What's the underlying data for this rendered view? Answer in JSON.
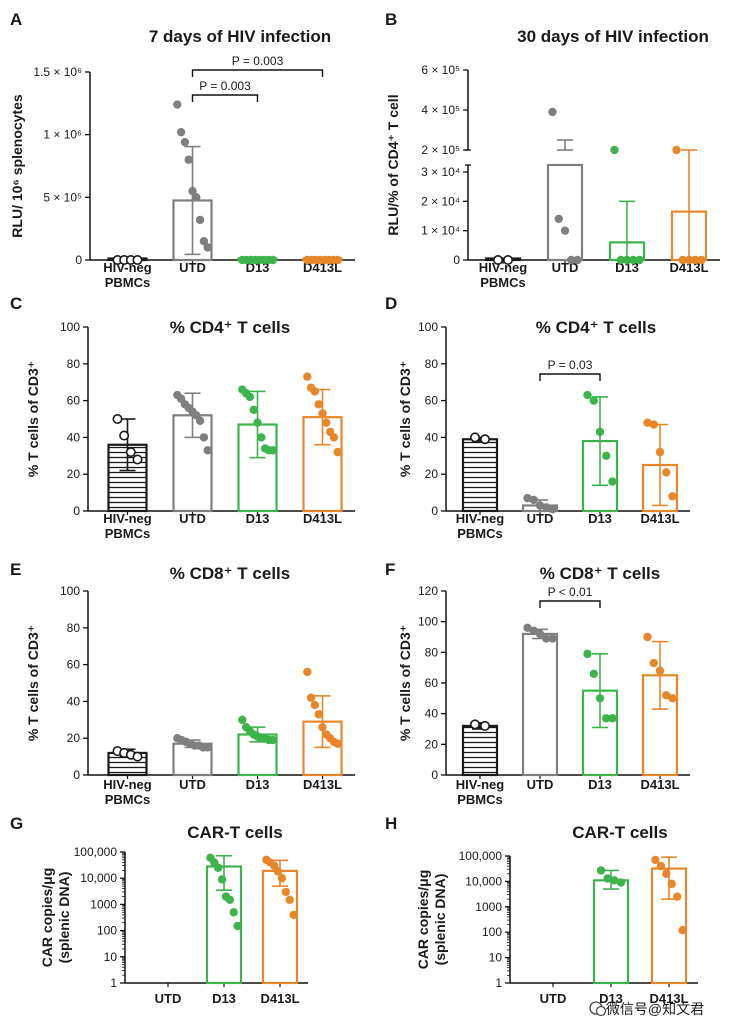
{
  "colors": {
    "neg": "#1a1a1a",
    "utd": "#7f7f7f",
    "d13": "#3cb44b",
    "d413l": "#e8872a"
  },
  "watermark": "微信号@知文君",
  "chart_data": [
    {
      "id": "A",
      "type": "bar",
      "title": "7 days of HIV infection",
      "ylabel": "RLU/ 10⁶ splenocytes",
      "scale": "linear",
      "ylim": [
        0,
        1500000
      ],
      "yticks": [
        0,
        500000,
        1000000,
        1500000
      ],
      "ytick_labels": [
        "0",
        "5 × 10⁵",
        "1 × 10⁶",
        "1.5 × 10⁶"
      ],
      "categories": [
        "HIV-neg\nPBMCs",
        "UTD",
        "D13",
        "D413L"
      ],
      "series": [
        {
          "name": "HIV-neg PBMCs",
          "color_key": "neg",
          "mean": 0,
          "sd": 0,
          "hatched": true,
          "marker": "open",
          "points": [
            0,
            0,
            0,
            0
          ]
        },
        {
          "name": "UTD",
          "color_key": "utd",
          "mean": 475000,
          "sd": 430000,
          "points": [
            1240000,
            1020000,
            940000,
            800000,
            550000,
            500000,
            320000,
            150000,
            100000
          ]
        },
        {
          "name": "D13",
          "color_key": "d13",
          "mean": 5000,
          "sd": 3000,
          "points": [
            0,
            0,
            0,
            0,
            0,
            0,
            0,
            0
          ]
        },
        {
          "name": "D413L",
          "color_key": "d413l",
          "mean": 5000,
          "sd": 3000,
          "points": [
            0,
            0,
            0,
            0,
            0,
            0,
            0,
            0
          ]
        }
      ],
      "brackets": [
        {
          "from": 1,
          "to": 3,
          "label": "P = 0.003"
        },
        {
          "from": 1,
          "to": 2,
          "label": "P = 0.003"
        }
      ]
    },
    {
      "id": "B",
      "type": "bar",
      "title": "30 days of HIV infection",
      "ylabel": "RLU/% of CD4⁺ T cell",
      "scale": "broken",
      "lower_range": [
        0,
        30000
      ],
      "upper_range": [
        200000,
        600000
      ],
      "yticks_lower": [
        0,
        10000,
        20000,
        30000
      ],
      "ytick_labels_lower": [
        "0",
        "1 × 10⁴",
        "2 × 10⁴",
        "3 × 10⁴"
      ],
      "yticks_upper": [
        200000,
        400000,
        600000
      ],
      "ytick_labels_upper": [
        "2 × 10⁵",
        "4 × 10⁵",
        "6 × 10⁵"
      ],
      "categories": [
        "HIV-neg\nPBMCs",
        "UTD",
        "D13",
        "D413L"
      ],
      "series": [
        {
          "name": "HIV-neg PBMCs",
          "color_key": "neg",
          "mean": 0,
          "sd": 0,
          "hatched": true,
          "marker": "open",
          "points": [
            0,
            0
          ]
        },
        {
          "name": "UTD",
          "color_key": "utd",
          "mean": 150000,
          "sd": 100000,
          "points": [
            390000,
            14000,
            10000,
            0,
            0
          ]
        },
        {
          "name": "D13",
          "color_key": "d13",
          "mean": 6000,
          "sd": 14000,
          "points": [
            34000,
            0,
            0,
            0,
            0
          ]
        },
        {
          "name": "D413L",
          "color_key": "d413l",
          "mean": 16500,
          "sd": 16000,
          "points": [
            38000,
            0,
            0,
            0,
            0
          ]
        }
      ]
    },
    {
      "id": "C",
      "type": "bar",
      "title": "% CD4⁺ T cells",
      "ylabel": "% T cells of CD3⁺",
      "scale": "linear",
      "ylim": [
        0,
        100
      ],
      "yticks": [
        0,
        20,
        40,
        60,
        80,
        100
      ],
      "categories": [
        "HIV-neg\nPBMCs",
        "UTD",
        "D13",
        "D413L"
      ],
      "series": [
        {
          "name": "HIV-neg PBMCs",
          "color_key": "neg",
          "mean": 36,
          "sd": 14,
          "hatched": true,
          "marker": "open",
          "points": [
            50,
            41,
            32,
            28
          ]
        },
        {
          "name": "UTD",
          "color_key": "utd",
          "mean": 52,
          "sd": 12,
          "points": [
            63,
            61,
            58,
            56,
            54,
            52,
            49,
            40,
            33
          ]
        },
        {
          "name": "D13",
          "color_key": "d13",
          "mean": 47,
          "sd": 18,
          "points": [
            66,
            64,
            62,
            55,
            48,
            40,
            34,
            33,
            33
          ]
        },
        {
          "name": "D413L",
          "color_key": "d413l",
          "mean": 51,
          "sd": 15,
          "points": [
            73,
            67,
            65,
            58,
            53,
            48,
            43,
            40,
            32
          ]
        }
      ]
    },
    {
      "id": "D",
      "type": "bar",
      "title": "% CD4⁺ T cells",
      "ylabel": "% T cells of CD3⁺",
      "scale": "linear",
      "ylim": [
        0,
        100
      ],
      "yticks": [
        0,
        20,
        40,
        60,
        80,
        100
      ],
      "categories": [
        "HIV-neg\nPBMCs",
        "UTD",
        "D13",
        "D413L"
      ],
      "series": [
        {
          "name": "HIV-neg PBMCs",
          "color_key": "neg",
          "mean": 39,
          "sd": 1,
          "hatched": true,
          "marker": "open",
          "points": [
            40,
            39
          ]
        },
        {
          "name": "UTD",
          "color_key": "utd",
          "mean": 3,
          "sd": 3,
          "points": [
            7,
            6,
            3,
            2,
            1
          ]
        },
        {
          "name": "D13",
          "color_key": "d13",
          "mean": 38,
          "sd": 24,
          "points": [
            63,
            60,
            43,
            30,
            16
          ]
        },
        {
          "name": "D413L",
          "color_key": "d413l",
          "mean": 25,
          "sd": 22,
          "points": [
            48,
            47,
            32,
            21,
            8
          ]
        }
      ],
      "brackets": [
        {
          "from": 1,
          "to": 2,
          "label": "P = 0.03"
        }
      ]
    },
    {
      "id": "E",
      "type": "bar",
      "title": "% CD8⁺ T cells",
      "ylabel": "% T cells of CD3⁺",
      "scale": "linear",
      "ylim": [
        0,
        100
      ],
      "yticks": [
        0,
        20,
        40,
        60,
        80,
        100
      ],
      "categories": [
        "HIV-neg\nPBMCs",
        "UTD",
        "D13",
        "D413L"
      ],
      "series": [
        {
          "name": "HIV-neg PBMCs",
          "color_key": "neg",
          "mean": 12,
          "sd": 2,
          "hatched": true,
          "marker": "open",
          "points": [
            13,
            12,
            11,
            10
          ]
        },
        {
          "name": "UTD",
          "color_key": "utd",
          "mean": 17,
          "sd": 2,
          "points": [
            20,
            19,
            18,
            17,
            16,
            16,
            15,
            15
          ]
        },
        {
          "name": "D13",
          "color_key": "d13",
          "mean": 22,
          "sd": 4,
          "points": [
            30,
            26,
            24,
            22,
            21,
            20,
            20,
            19,
            19
          ]
        },
        {
          "name": "D413L",
          "color_key": "d413l",
          "mean": 29,
          "sd": 14,
          "points": [
            56,
            42,
            38,
            33,
            26,
            22,
            20,
            18,
            17
          ]
        }
      ]
    },
    {
      "id": "F",
      "type": "bar",
      "title": "% CD8⁺ T cells",
      "ylabel": "% T cells of CD3⁺",
      "scale": "linear",
      "ylim": [
        0,
        120
      ],
      "yticks": [
        0,
        20,
        40,
        60,
        80,
        100,
        120
      ],
      "categories": [
        "HIV-neg\nPBMCs",
        "UTD",
        "D13",
        "D413L"
      ],
      "series": [
        {
          "name": "HIV-neg PBMCs",
          "color_key": "neg",
          "mean": 32,
          "sd": 2,
          "hatched": true,
          "marker": "open",
          "points": [
            33,
            32
          ]
        },
        {
          "name": "UTD",
          "color_key": "utd",
          "mean": 92,
          "sd": 3,
          "points": [
            96,
            94,
            92,
            89,
            89
          ]
        },
        {
          "name": "D13",
          "color_key": "d13",
          "mean": 55,
          "sd": 24,
          "points": [
            79,
            66,
            50,
            37,
            37
          ]
        },
        {
          "name": "D413L",
          "color_key": "d413l",
          "mean": 65,
          "sd": 22,
          "points": [
            90,
            73,
            68,
            52,
            50
          ]
        }
      ],
      "brackets": [
        {
          "from": 1,
          "to": 2,
          "label": "P < 0.01"
        }
      ]
    },
    {
      "id": "G",
      "type": "bar",
      "title": "CAR-T cells",
      "ylabel": "CAR copies/μg (splenic DNA)",
      "scale": "log",
      "ylim": [
        1,
        100000
      ],
      "yticks": [
        1,
        10,
        100,
        1000,
        10000,
        100000
      ],
      "ytick_labels": [
        "1",
        "10",
        "100",
        "1000",
        "10,000",
        "100,000"
      ],
      "categories": [
        "UTD",
        "D13",
        "D413L"
      ],
      "series": [
        {
          "name": "UTD",
          "color_key": "utd",
          "mean": null,
          "points": []
        },
        {
          "name": "D13",
          "color_key": "d13",
          "mean": 28000,
          "sd_upper": 72000,
          "sd_lower": 3500,
          "points": [
            60000,
            40000,
            25000,
            9000,
            2000,
            1500,
            500,
            150
          ]
        },
        {
          "name": "D413L",
          "color_key": "d413l",
          "mean": 19000,
          "sd_upper": 48000,
          "sd_lower": 5000,
          "points": [
            50000,
            40000,
            30000,
            18000,
            10000,
            3000,
            1500,
            400
          ]
        }
      ]
    },
    {
      "id": "H",
      "type": "bar",
      "title": "CAR-T cells",
      "ylabel": "CAR copies/μg (splenic DNA)",
      "scale": "log",
      "ylim": [
        1,
        100000
      ],
      "yticks": [
        1,
        10,
        100,
        1000,
        10000,
        100000
      ],
      "ytick_labels": [
        "1",
        "10",
        "100",
        "1000",
        "10,000",
        "100,000"
      ],
      "categories": [
        "UTD",
        "D13",
        "D413L"
      ],
      "series": [
        {
          "name": "UTD",
          "color_key": "utd",
          "mean": null,
          "points": []
        },
        {
          "name": "D13",
          "color_key": "d13",
          "mean": 11000,
          "sd_upper": 27000,
          "sd_lower": 5000,
          "points": [
            27000,
            13000,
            11000,
            9000
          ]
        },
        {
          "name": "D413L",
          "color_key": "d413l",
          "mean": 32000,
          "sd_upper": 90000,
          "sd_lower": 2000,
          "points": [
            70000,
            40000,
            20000,
            8000,
            2500,
            120
          ]
        }
      ]
    }
  ]
}
